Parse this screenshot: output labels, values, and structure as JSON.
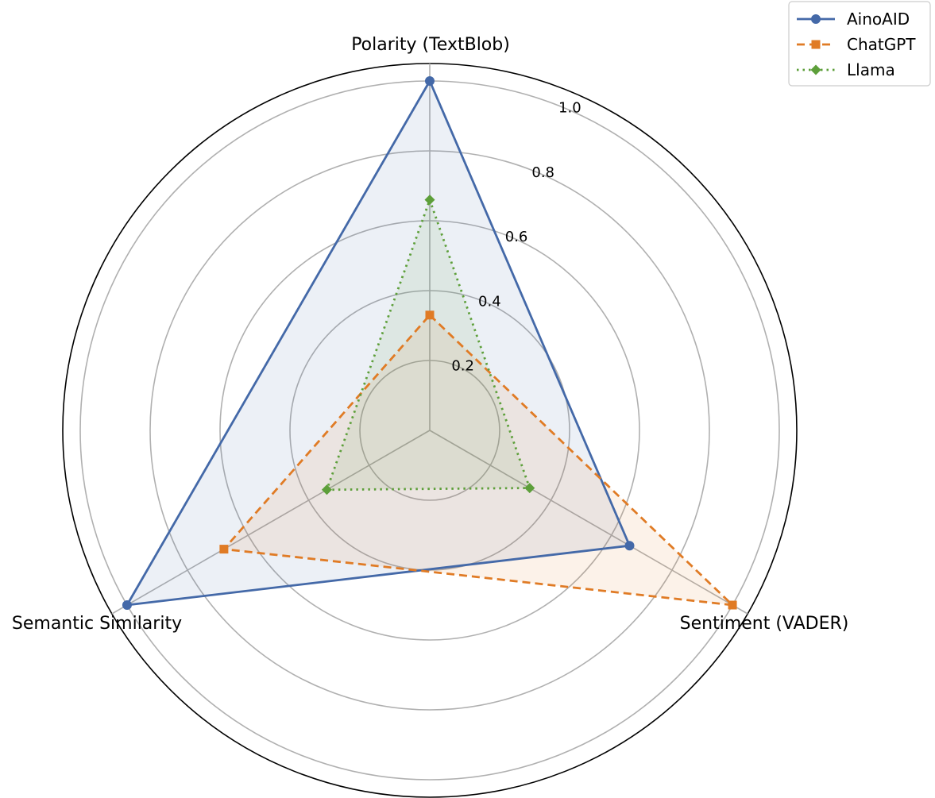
{
  "chart_data": {
    "type": "radar",
    "axes": [
      "Polarity (TextBlob)",
      "Sentiment (VADER)",
      "Semantic Similarity"
    ],
    "rlim": [
      0,
      1.05
    ],
    "rticks": [
      0.2,
      0.4,
      0.6,
      0.8,
      1.0
    ],
    "rtick_labels": [
      "0.2",
      "0.4",
      "0.6",
      "0.8",
      "1.0"
    ],
    "grid": true,
    "legend_position": "top-right",
    "series": [
      {
        "name": "AinoAID",
        "values": [
          1.0,
          0.66,
          1.0
        ],
        "color": "#4469a8",
        "dash": "solid",
        "marker": "circle"
      },
      {
        "name": "ChatGPT",
        "values": [
          0.33,
          1.0,
          0.68
        ],
        "color": "#e07b25",
        "dash": "dashed",
        "marker": "square"
      },
      {
        "name": "Llama",
        "values": [
          0.66,
          0.33,
          0.34
        ],
        "color": "#5d9f3a",
        "dash": "dotted",
        "marker": "diamond"
      }
    ]
  }
}
